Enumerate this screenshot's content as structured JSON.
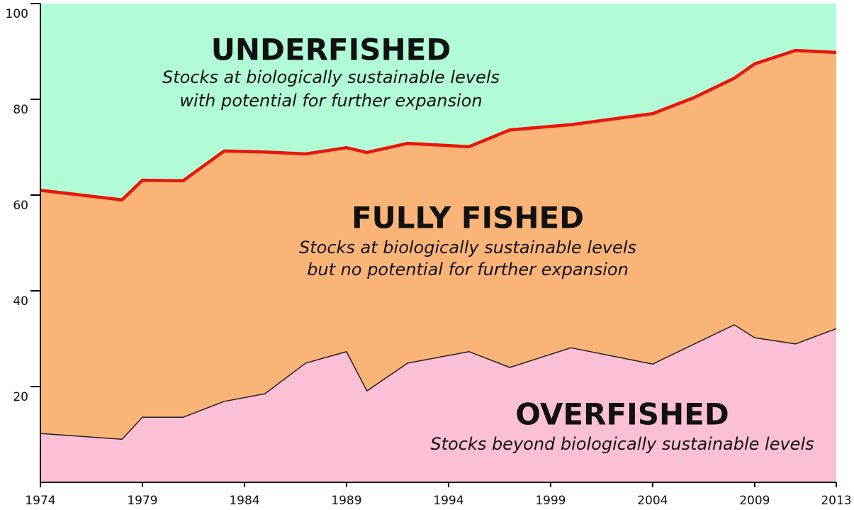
{
  "chart_data": {
    "type": "stacked_area",
    "x": [
      1974,
      1978,
      1979,
      1981,
      1983,
      1985,
      1987,
      1989,
      1990,
      1992,
      1995,
      1997,
      2000,
      2004,
      2006,
      2008,
      2009,
      2011,
      2013
    ],
    "series": [
      {
        "name": "OVERFISHED",
        "color": "#fbbfd6",
        "line_color": "#222222",
        "values": [
          10.2,
          9.0,
          13.6,
          13.6,
          16.9,
          18.5,
          24.9,
          27.3,
          19.1,
          24.9,
          27.3,
          24.0,
          28.1,
          24.7,
          28.8,
          32.9,
          30.2,
          28.9,
          32.1
        ]
      },
      {
        "name": "FULLY FISHED",
        "color": "#fbb477",
        "line_color": "#e8160c",
        "values": [
          50.8,
          50.0,
          49.5,
          49.4,
          52.3,
          50.5,
          43.7,
          42.6,
          49.8,
          45.9,
          42.8,
          49.6,
          46.6,
          52.3,
          51.5,
          51.5,
          57.2,
          61.3,
          57.7
        ]
      },
      {
        "name": "UNDERFISHED",
        "color": "#b1fbd6",
        "values": [
          39.0,
          41.0,
          36.9,
          37.0,
          30.8,
          31.0,
          31.4,
          30.1,
          31.1,
          29.2,
          29.9,
          26.4,
          25.3,
          23.0,
          19.7,
          15.6,
          12.6,
          9.8,
          10.2
        ]
      }
    ],
    "annotations": [
      {
        "title": "UNDERFISHED",
        "text": [
          "Stocks at biologically sustainable levels",
          "with potential for further expansion"
        ]
      },
      {
        "title": "FULLY FISHED",
        "text": [
          "Stocks at biologically sustainable levels",
          " but no potential for further expansion"
        ]
      },
      {
        "title": "OVERFISHED",
        "text": [
          "Stocks beyond biologically sustainable levels"
        ]
      }
    ],
    "xlim": [
      1974,
      2013
    ],
    "xticks": [
      1974,
      1979,
      1984,
      1989,
      1994,
      1999,
      2004,
      2009,
      2013
    ],
    "ylim": [
      0,
      100
    ],
    "yticks": [
      20,
      40,
      60,
      80,
      100
    ]
  }
}
